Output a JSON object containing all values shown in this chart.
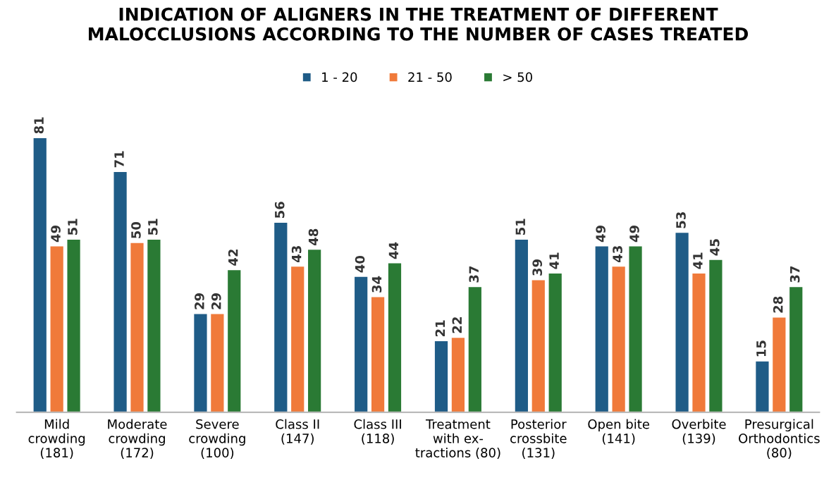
{
  "chart_data": {
    "type": "bar",
    "title": "INDICATION OF ALIGNERS IN THE TREATMENT OF DIFFERENT\nMALOCCLUSIONS ACCORDING TO THE NUMBER OF CASES TREATED",
    "categories": [
      "Mild\ncrowding\n(181)",
      "Moderate\ncrowding\n(172)",
      "Severe\ncrowding\n(100)",
      "Class II\n(147)",
      "Class III\n(118)",
      "Treatment\nwith ex-\ntractions (80)",
      "Posterior\ncrossbite\n(131)",
      "Open bite\n(141)",
      "Overbite\n(139)",
      "Presurgical\nOrthodontics\n(80)"
    ],
    "series": [
      {
        "name": "1 - 20",
        "color": "#1f5c87",
        "values": [
          81,
          71,
          29,
          56,
          40,
          21,
          51,
          49,
          53,
          15
        ]
      },
      {
        "name": "21 - 50",
        "color": "#f07a3a",
        "values": [
          49,
          50,
          29,
          43,
          34,
          22,
          39,
          43,
          41,
          28
        ]
      },
      {
        "name": "> 50",
        "color": "#2a7a34",
        "values": [
          51,
          51,
          42,
          48,
          44,
          37,
          41,
          49,
          45,
          37
        ]
      }
    ],
    "data_labels": true,
    "legend": "top",
    "grid": false
  }
}
